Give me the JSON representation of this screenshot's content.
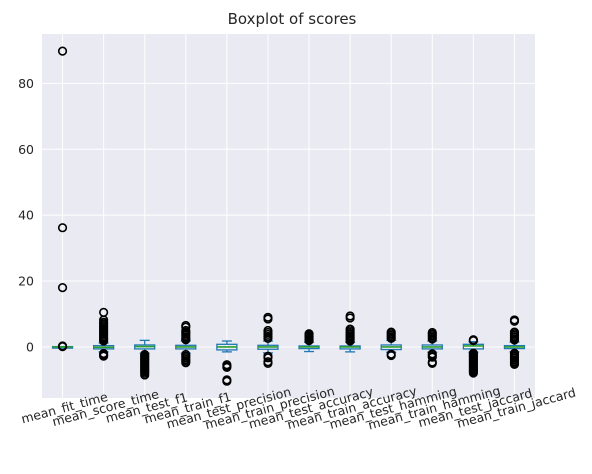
{
  "chart_data": {
    "type": "boxplot",
    "title": "Boxplot of scores",
    "xlabel": "",
    "ylabel": "",
    "ylim": [
      -15.5,
      95
    ],
    "yticks": [
      0,
      20,
      40,
      60,
      80
    ],
    "grid": true,
    "categories": [
      "mean_fit_time",
      "mean_score_time",
      "mean_test_f1",
      "mean_train_f1",
      "mean_test_precision",
      "mean_train_precision",
      "mean_test_accuracy",
      "mean_train_accuracy",
      "mean_test_hamming",
      "mean_train_hamming",
      "mean_test_jaccard",
      "mean_train_jaccard"
    ],
    "boxes": [
      {
        "whislo": -0.1,
        "q1": -0.1,
        "med": 0.0,
        "q3": 0.1,
        "whishi": 0.1,
        "fliers": [
          89.8,
          36.2,
          18.0,
          0.3,
          0.2,
          0.1
        ]
      },
      {
        "whislo": -1.5,
        "q1": -0.6,
        "med": -0.1,
        "q3": 0.4,
        "whishi": 1.2,
        "fliers": [
          10.5,
          8.2,
          7.5,
          7.0,
          6.5,
          6.0,
          5.5,
          5.0,
          4.5,
          4.0,
          3.5,
          3.0,
          2.6,
          2.2,
          1.8,
          -2.0,
          -2.4,
          -2.8
        ]
      },
      {
        "whislo": -1.9,
        "q1": -0.6,
        "med": 0.1,
        "q3": 0.6,
        "whishi": 2.0,
        "fliers": [
          -2.3,
          -2.7,
          -3.1,
          -3.5,
          -3.9,
          -4.3,
          -4.7,
          -5.1,
          -5.5,
          -5.9,
          -6.3,
          -6.7,
          -7.1,
          -7.5,
          -8.0,
          -8.5
        ]
      },
      {
        "whislo": -1.9,
        "q1": -0.6,
        "med": 0.0,
        "q3": 0.5,
        "whishi": 1.8,
        "fliers": [
          6.5,
          6.0,
          5.0,
          4.5,
          4.0,
          3.5,
          3.0,
          2.5,
          2.2,
          -2.3,
          -2.8,
          -3.3,
          -3.8,
          -4.3,
          -4.8
        ]
      },
      {
        "whislo": -1.5,
        "q1": -0.9,
        "med": 0.0,
        "q3": 0.8,
        "whishi": 1.8,
        "fliers": [
          -5.4,
          -5.8,
          -6.2,
          -10.0,
          -10.4
        ]
      },
      {
        "whislo": -1.8,
        "q1": -0.7,
        "med": 0.0,
        "q3": 0.5,
        "whishi": 1.8,
        "fliers": [
          9.0,
          8.5,
          5.0,
          4.4,
          3.8,
          3.2,
          2.6,
          -2.8,
          -3.3,
          -4.5,
          -5.0
        ]
      },
      {
        "whislo": -1.4,
        "q1": -0.5,
        "med": 0.0,
        "q3": 0.3,
        "whishi": 1.4,
        "fliers": [
          4.0,
          3.7,
          3.3,
          3.0,
          2.6,
          2.2,
          1.9
        ]
      },
      {
        "whislo": -1.5,
        "q1": -0.6,
        "med": 0.0,
        "q3": 0.3,
        "whishi": 1.4,
        "fliers": [
          9.4,
          8.8,
          5.4,
          4.9,
          4.4,
          3.9,
          3.4,
          3.0,
          2.6,
          2.2,
          1.8
        ]
      },
      {
        "whislo": -1.6,
        "q1": -0.8,
        "med": 0.0,
        "q3": 0.6,
        "whishi": 2.0,
        "fliers": [
          4.5,
          4.0,
          3.5,
          3.0,
          2.6,
          -2.2,
          -2.6
        ]
      },
      {
        "whislo": -1.6,
        "q1": -0.6,
        "med": 0.0,
        "q3": 0.6,
        "whishi": 1.8,
        "fliers": [
          4.4,
          3.9,
          3.4,
          2.9,
          2.4,
          -2.1,
          -2.6,
          -3.1,
          -4.6,
          -5.0
        ]
      },
      {
        "whislo": -1.6,
        "q1": -0.6,
        "med": 0.3,
        "q3": 0.8,
        "whishi": 1.6,
        "fliers": [
          2.2,
          1.9,
          -1.9,
          -2.3,
          -2.7,
          -3.1,
          -3.5,
          -3.9,
          -4.3,
          -4.7,
          -5.1,
          -5.5,
          -5.9,
          -6.3,
          -6.7,
          -7.1,
          -7.5,
          -7.9
        ]
      },
      {
        "whislo": -1.5,
        "q1": -0.5,
        "med": 0.0,
        "q3": 0.4,
        "whishi": 1.5,
        "fliers": [
          8.2,
          7.8,
          4.5,
          4.0,
          3.5,
          3.0,
          2.5,
          2.1,
          -1.9,
          -2.4,
          -2.9,
          -3.4,
          -3.9,
          -4.4,
          -4.9,
          -5.3
        ]
      }
    ],
    "colors": {
      "background": "#eaeaf2",
      "grid": "#ffffff",
      "box": "#1f77b4",
      "median": "#2ca02c",
      "flier": "#000000"
    }
  }
}
